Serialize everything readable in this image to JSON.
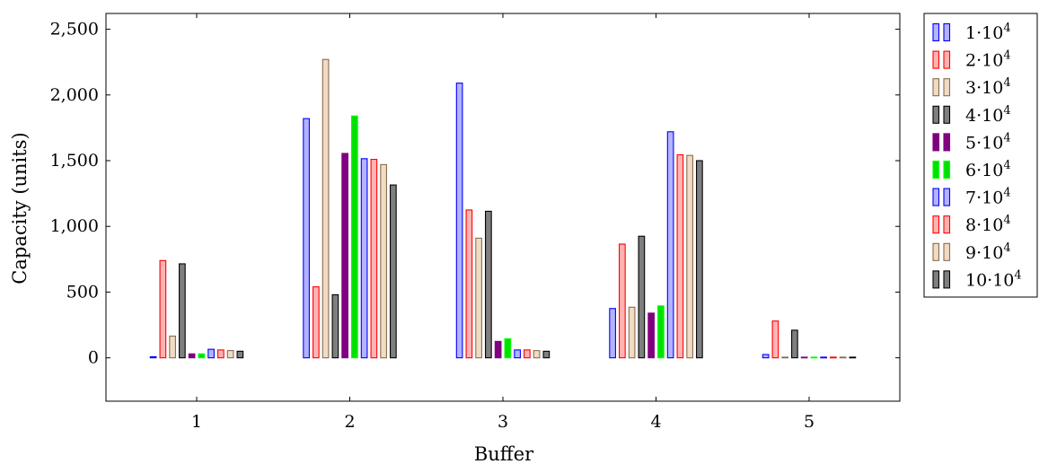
{
  "chart_data": {
    "type": "bar",
    "xlabel": "Buffer",
    "ylabel": "Capacity (units)",
    "ylim": [
      -330,
      2620
    ],
    "yticks": [
      0,
      500,
      1000,
      1500,
      2000,
      2500
    ],
    "ytick_labels": [
      "0",
      "500",
      "1,000",
      "1,500",
      "2,000",
      "2,500"
    ],
    "categories": [
      "1",
      "2",
      "3",
      "4",
      "5"
    ],
    "grid": false,
    "legend_position": "outside-right",
    "series": [
      {
        "name": "1·10⁴",
        "base": "1",
        "exp": "4",
        "fill": "#b3b3ff",
        "stroke": "#0000ff",
        "values": [
          8,
          1820,
          2090,
          375,
          25
        ]
      },
      {
        "name": "2·10⁴",
        "base": "2",
        "exp": "4",
        "fill": "#ffb3b3",
        "stroke": "#ff0000",
        "values": [
          740,
          540,
          1125,
          865,
          280
        ]
      },
      {
        "name": "3·10⁴",
        "base": "3",
        "exp": "4",
        "fill": "#f0dcc5",
        "stroke": "#8a6c4f",
        "values": [
          165,
          2270,
          910,
          385,
          5
        ]
      },
      {
        "name": "4·10⁴",
        "base": "4",
        "exp": "4",
        "fill": "#7f7f7f",
        "stroke": "#000000",
        "values": [
          715,
          480,
          1115,
          925,
          210
        ]
      },
      {
        "name": "5·10⁴",
        "base": "5",
        "exp": "4",
        "fill": "#800080",
        "stroke": "#800080",
        "values": [
          30,
          1555,
          125,
          340,
          5
        ]
      },
      {
        "name": "6·10⁴",
        "base": "6",
        "exp": "4",
        "fill": "#00e000",
        "stroke": "#00ff00",
        "values": [
          30,
          1840,
          145,
          395,
          5
        ]
      },
      {
        "name": "7·10⁴",
        "base": "7",
        "exp": "4",
        "fill": "#b3b3ff",
        "stroke": "#0000ff",
        "values": [
          65,
          1515,
          60,
          1720,
          5
        ]
      },
      {
        "name": "8·10⁴",
        "base": "8",
        "exp": "4",
        "fill": "#ffb3b3",
        "stroke": "#ff0000",
        "values": [
          60,
          1510,
          60,
          1545,
          5
        ]
      },
      {
        "name": "9·10⁴",
        "base": "9",
        "exp": "4",
        "fill": "#f0dcc5",
        "stroke": "#8a6c4f",
        "values": [
          55,
          1470,
          55,
          1540,
          5
        ]
      },
      {
        "name": "10·10⁴",
        "base": "10",
        "exp": "4",
        "fill": "#7f7f7f",
        "stroke": "#000000",
        "values": [
          50,
          1315,
          50,
          1500,
          5
        ]
      }
    ]
  }
}
